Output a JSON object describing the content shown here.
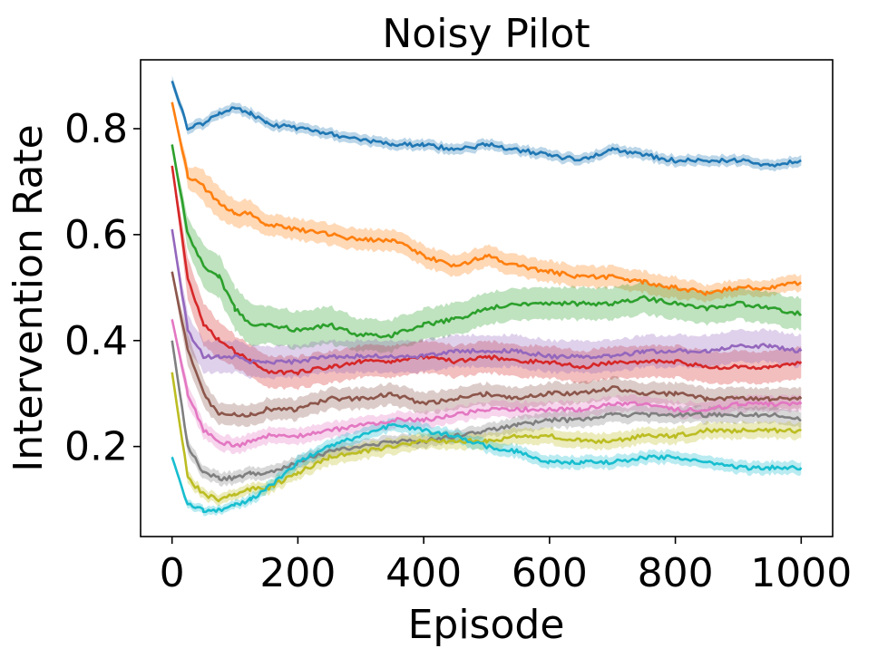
{
  "chart_data": {
    "type": "line",
    "title": "Noisy Pilot",
    "xlabel": "Episode",
    "ylabel": "Intervention Rate",
    "xlim": [
      -50,
      1050
    ],
    "ylim": [
      0.03,
      0.93
    ],
    "xticks": [
      0,
      200,
      400,
      600,
      800,
      1000
    ],
    "yticks": [
      0.2,
      0.4,
      0.6,
      0.8
    ],
    "xtick_labels": [
      "0",
      "200",
      "400",
      "600",
      "800",
      "1000"
    ],
    "ytick_labels": [
      "0.2",
      "0.4",
      "0.6",
      "0.8"
    ],
    "grid": false,
    "legend": "none",
    "shaded_band": true,
    "series": [
      {
        "color": "#1f77b4",
        "x": [
          0,
          25,
          50,
          75,
          100,
          125,
          150,
          200,
          250,
          300,
          350,
          400,
          450,
          500,
          550,
          600,
          650,
          700,
          750,
          800,
          850,
          900,
          950,
          1000
        ],
        "y": [
          0.89,
          0.8,
          0.81,
          0.83,
          0.84,
          0.83,
          0.81,
          0.8,
          0.79,
          0.78,
          0.77,
          0.77,
          0.76,
          0.77,
          0.76,
          0.75,
          0.74,
          0.76,
          0.75,
          0.74,
          0.74,
          0.74,
          0.73,
          0.74
        ],
        "band": [
          0.01,
          0.01,
          0.01,
          0.01,
          0.01,
          0.01,
          0.01,
          0.01,
          0.01,
          0.01,
          0.01,
          0.01,
          0.01,
          0.01,
          0.01,
          0.01,
          0.01,
          0.01,
          0.01,
          0.01,
          0.01,
          0.01,
          0.01,
          0.01
        ]
      },
      {
        "color": "#ff7f0e",
        "x": [
          0,
          25,
          50,
          75,
          100,
          125,
          150,
          200,
          250,
          300,
          350,
          400,
          450,
          500,
          550,
          600,
          650,
          700,
          750,
          800,
          850,
          900,
          950,
          1000
        ],
        "y": [
          0.85,
          0.71,
          0.69,
          0.66,
          0.64,
          0.64,
          0.62,
          0.61,
          0.6,
          0.59,
          0.59,
          0.56,
          0.54,
          0.56,
          0.54,
          0.53,
          0.52,
          0.52,
          0.51,
          0.5,
          0.49,
          0.5,
          0.5,
          0.51
        ],
        "band": [
          0.005,
          0.02,
          0.03,
          0.03,
          0.025,
          0.025,
          0.02,
          0.02,
          0.02,
          0.02,
          0.02,
          0.02,
          0.02,
          0.02,
          0.02,
          0.02,
          0.02,
          0.02,
          0.02,
          0.02,
          0.015,
          0.015,
          0.015,
          0.015
        ]
      },
      {
        "color": "#2ca02c",
        "x": [
          0,
          25,
          50,
          75,
          100,
          125,
          150,
          200,
          250,
          300,
          350,
          400,
          450,
          500,
          550,
          600,
          650,
          700,
          750,
          800,
          850,
          900,
          950,
          1000
        ],
        "y": [
          0.77,
          0.6,
          0.54,
          0.52,
          0.46,
          0.43,
          0.43,
          0.42,
          0.43,
          0.41,
          0.41,
          0.43,
          0.44,
          0.46,
          0.47,
          0.47,
          0.47,
          0.47,
          0.48,
          0.47,
          0.46,
          0.47,
          0.46,
          0.45
        ],
        "band": [
          0.005,
          0.03,
          0.04,
          0.04,
          0.04,
          0.04,
          0.035,
          0.035,
          0.035,
          0.03,
          0.03,
          0.03,
          0.03,
          0.03,
          0.03,
          0.03,
          0.03,
          0.03,
          0.03,
          0.03,
          0.03,
          0.03,
          0.03,
          0.03
        ]
      },
      {
        "color": "#d62728",
        "x": [
          0,
          25,
          50,
          75,
          100,
          125,
          150,
          200,
          250,
          300,
          350,
          400,
          450,
          500,
          550,
          600,
          650,
          700,
          750,
          800,
          850,
          900,
          950,
          1000
        ],
        "y": [
          0.73,
          0.52,
          0.43,
          0.4,
          0.38,
          0.36,
          0.34,
          0.34,
          0.35,
          0.36,
          0.36,
          0.37,
          0.36,
          0.37,
          0.36,
          0.36,
          0.35,
          0.36,
          0.36,
          0.36,
          0.35,
          0.35,
          0.35,
          0.36
        ],
        "band": [
          0.005,
          0.04,
          0.04,
          0.035,
          0.03,
          0.03,
          0.03,
          0.03,
          0.03,
          0.03,
          0.03,
          0.03,
          0.03,
          0.03,
          0.03,
          0.03,
          0.03,
          0.03,
          0.03,
          0.03,
          0.03,
          0.03,
          0.03,
          0.03
        ]
      },
      {
        "color": "#9467bd",
        "x": [
          0,
          25,
          50,
          75,
          100,
          125,
          150,
          200,
          250,
          300,
          350,
          400,
          450,
          500,
          550,
          600,
          650,
          700,
          750,
          800,
          850,
          900,
          950,
          1000
        ],
        "y": [
          0.61,
          0.42,
          0.37,
          0.37,
          0.37,
          0.36,
          0.36,
          0.36,
          0.37,
          0.37,
          0.37,
          0.37,
          0.38,
          0.38,
          0.38,
          0.37,
          0.37,
          0.37,
          0.38,
          0.38,
          0.38,
          0.39,
          0.39,
          0.38
        ],
        "band": [
          0.005,
          0.03,
          0.03,
          0.03,
          0.03,
          0.03,
          0.03,
          0.03,
          0.03,
          0.03,
          0.03,
          0.03,
          0.03,
          0.03,
          0.03,
          0.03,
          0.03,
          0.03,
          0.03,
          0.03,
          0.03,
          0.03,
          0.03,
          0.03
        ]
      },
      {
        "color": "#8c564b",
        "x": [
          0,
          25,
          50,
          75,
          100,
          125,
          150,
          200,
          250,
          300,
          350,
          400,
          450,
          500,
          550,
          600,
          650,
          700,
          750,
          800,
          850,
          900,
          950,
          1000
        ],
        "y": [
          0.53,
          0.38,
          0.3,
          0.26,
          0.26,
          0.26,
          0.27,
          0.27,
          0.29,
          0.29,
          0.3,
          0.28,
          0.29,
          0.3,
          0.29,
          0.3,
          0.3,
          0.31,
          0.3,
          0.3,
          0.29,
          0.29,
          0.29,
          0.29
        ],
        "band": [
          0.005,
          0.03,
          0.025,
          0.02,
          0.02,
          0.02,
          0.02,
          0.02,
          0.02,
          0.02,
          0.02,
          0.02,
          0.02,
          0.02,
          0.02,
          0.02,
          0.02,
          0.02,
          0.02,
          0.02,
          0.02,
          0.02,
          0.02,
          0.02
        ]
      },
      {
        "color": "#e377c2",
        "x": [
          0,
          25,
          50,
          75,
          100,
          125,
          150,
          200,
          250,
          300,
          350,
          400,
          450,
          500,
          550,
          600,
          650,
          700,
          750,
          800,
          850,
          900,
          950,
          1000
        ],
        "y": [
          0.44,
          0.3,
          0.23,
          0.21,
          0.2,
          0.21,
          0.22,
          0.22,
          0.23,
          0.24,
          0.25,
          0.25,
          0.26,
          0.27,
          0.27,
          0.27,
          0.27,
          0.28,
          0.28,
          0.27,
          0.27,
          0.28,
          0.28,
          0.28
        ],
        "band": [
          0.005,
          0.02,
          0.015,
          0.015,
          0.015,
          0.015,
          0.015,
          0.015,
          0.015,
          0.015,
          0.015,
          0.015,
          0.015,
          0.015,
          0.015,
          0.015,
          0.015,
          0.015,
          0.015,
          0.015,
          0.015,
          0.015,
          0.015,
          0.015
        ]
      },
      {
        "color": "#7f7f7f",
        "x": [
          0,
          25,
          50,
          75,
          100,
          125,
          150,
          200,
          250,
          300,
          350,
          400,
          450,
          500,
          550,
          600,
          650,
          700,
          750,
          800,
          850,
          900,
          950,
          1000
        ],
        "y": [
          0.4,
          0.2,
          0.15,
          0.14,
          0.14,
          0.15,
          0.15,
          0.17,
          0.19,
          0.2,
          0.21,
          0.21,
          0.22,
          0.23,
          0.24,
          0.25,
          0.25,
          0.26,
          0.26,
          0.26,
          0.26,
          0.26,
          0.26,
          0.25
        ],
        "band": [
          0.005,
          0.015,
          0.012,
          0.012,
          0.012,
          0.012,
          0.012,
          0.012,
          0.012,
          0.012,
          0.012,
          0.012,
          0.012,
          0.012,
          0.015,
          0.015,
          0.015,
          0.015,
          0.015,
          0.015,
          0.015,
          0.015,
          0.015,
          0.015
        ]
      },
      {
        "color": "#bcbd22",
        "x": [
          0,
          25,
          50,
          75,
          100,
          125,
          150,
          200,
          250,
          300,
          350,
          400,
          450,
          500,
          550,
          600,
          650,
          700,
          750,
          800,
          850,
          900,
          950,
          1000
        ],
        "y": [
          0.34,
          0.14,
          0.11,
          0.1,
          0.11,
          0.12,
          0.12,
          0.15,
          0.18,
          0.19,
          0.2,
          0.21,
          0.21,
          0.21,
          0.22,
          0.22,
          0.21,
          0.21,
          0.22,
          0.22,
          0.23,
          0.23,
          0.23,
          0.23
        ],
        "band": [
          0.005,
          0.012,
          0.01,
          0.01,
          0.01,
          0.01,
          0.012,
          0.012,
          0.015,
          0.015,
          0.015,
          0.015,
          0.015,
          0.015,
          0.015,
          0.015,
          0.015,
          0.015,
          0.015,
          0.015,
          0.015,
          0.015,
          0.015,
          0.015
        ]
      },
      {
        "color": "#17becf",
        "x": [
          0,
          25,
          50,
          75,
          100,
          125,
          150,
          200,
          250,
          300,
          350,
          400,
          450,
          500,
          550,
          600,
          650,
          700,
          750,
          800,
          850,
          900,
          950,
          1000
        ],
        "y": [
          0.18,
          0.09,
          0.08,
          0.08,
          0.09,
          0.1,
          0.12,
          0.17,
          0.2,
          0.22,
          0.24,
          0.23,
          0.22,
          0.2,
          0.19,
          0.17,
          0.17,
          0.17,
          0.18,
          0.18,
          0.17,
          0.16,
          0.16,
          0.16
        ],
        "band": [
          0.005,
          0.008,
          0.008,
          0.008,
          0.008,
          0.01,
          0.01,
          0.012,
          0.012,
          0.012,
          0.012,
          0.012,
          0.012,
          0.012,
          0.012,
          0.012,
          0.012,
          0.012,
          0.012,
          0.012,
          0.012,
          0.012,
          0.012,
          0.012
        ]
      }
    ]
  }
}
